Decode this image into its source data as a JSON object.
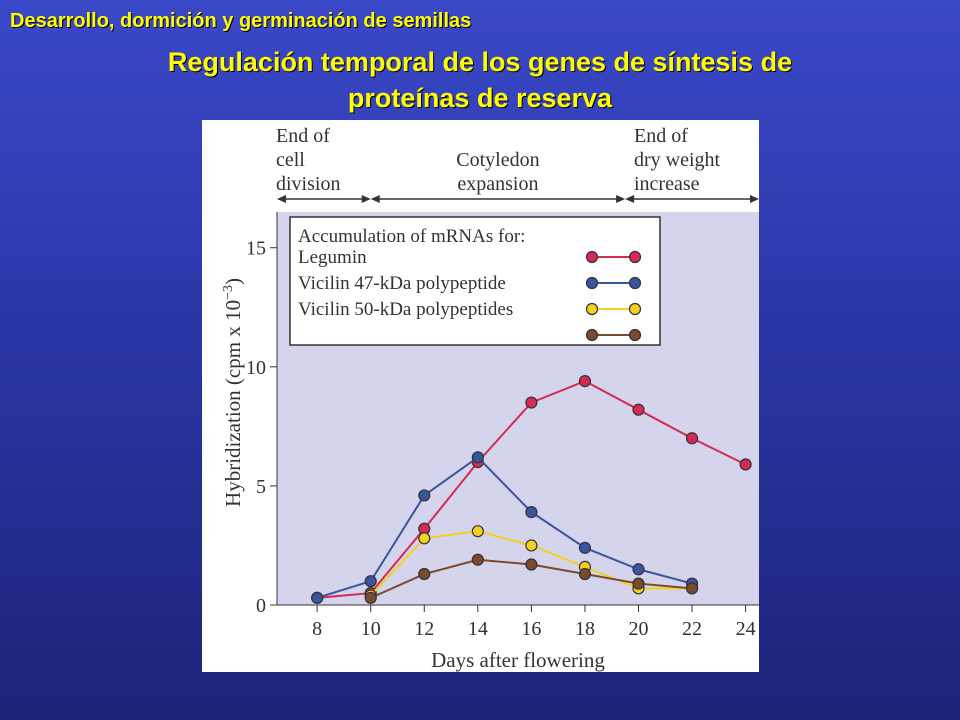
{
  "slide": {
    "kicker": "Desarrollo, dormición y germinación de semillas",
    "title_line1": "Regulación temporal de los genes de síntesis de",
    "title_line2": "proteínas de reserva"
  },
  "colors": {
    "background": "#2a36a6",
    "title_text": "#ffff00",
    "plot_background": "#d4d4ec"
  },
  "chart_data": {
    "type": "line",
    "xlabel": "Days after flowering",
    "ylabel": "Hybridization (cpm x 10",
    "ylabel_exponent": "−3",
    "ylabel_close": ")",
    "xlim": [
      6.5,
      24.5
    ],
    "ylim": [
      0,
      16.5
    ],
    "x_ticks": [
      8,
      10,
      12,
      14,
      16,
      18,
      20,
      22,
      24
    ],
    "y_ticks": [
      0,
      5,
      10,
      15
    ],
    "phases": [
      {
        "lines": [
          "End of",
          "cell",
          "division"
        ],
        "from": 6.5,
        "to": 10
      },
      {
        "lines": [
          "Cotyledon",
          "expansion"
        ],
        "from": 10,
        "to": 19.5
      },
      {
        "lines": [
          "End of",
          "dry weight",
          "increase"
        ],
        "from": 19.5,
        "to": 24.5
      }
    ],
    "legend_title": "Accumulation of mRNAs for:",
    "legend_position": "top-left",
    "series": [
      {
        "name": "Legumin",
        "color": "#d42a55",
        "points": [
          [
            8,
            0.3
          ],
          [
            10,
            0.5
          ],
          [
            12,
            3.2
          ],
          [
            14,
            6.0
          ],
          [
            16,
            8.5
          ],
          [
            18,
            9.4
          ],
          [
            20,
            8.2
          ],
          [
            22,
            7.0
          ],
          [
            24,
            5.9
          ]
        ]
      },
      {
        "name": "Vicilin 47-kDa polypeptide",
        "color": "#3a54a0",
        "points": [
          [
            8,
            0.3
          ],
          [
            10,
            1.0
          ],
          [
            12,
            4.6
          ],
          [
            14,
            6.2
          ],
          [
            16,
            3.9
          ],
          [
            18,
            2.4
          ],
          [
            20,
            1.5
          ],
          [
            22,
            0.9
          ]
        ]
      },
      {
        "name": "Vicilin 50-kDa polypeptides",
        "color": "#f2d21e",
        "points": [
          [
            10,
            0.4
          ],
          [
            12,
            2.8
          ],
          [
            14,
            3.1
          ],
          [
            16,
            2.5
          ],
          [
            18,
            1.6
          ],
          [
            20,
            0.7
          ],
          [
            22,
            0.7
          ]
        ]
      },
      {
        "name": "",
        "color": "#7a4a2e",
        "points": [
          [
            10,
            0.3
          ],
          [
            12,
            1.3
          ],
          [
            14,
            1.9
          ],
          [
            16,
            1.7
          ],
          [
            18,
            1.3
          ],
          [
            20,
            0.9
          ],
          [
            22,
            0.7
          ]
        ]
      }
    ]
  }
}
